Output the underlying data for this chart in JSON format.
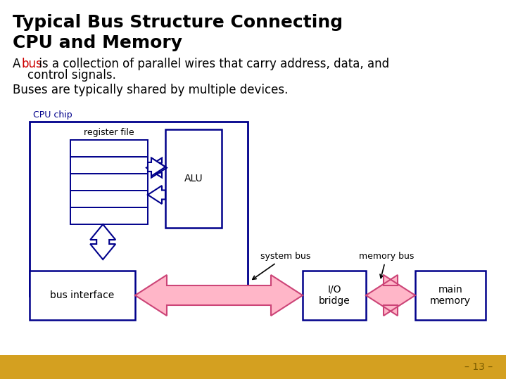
{
  "title_line1": "Typical Bus Structure Connecting",
  "title_line2": "CPU and Memory",
  "title_color": "#000000",
  "title_fontsize": 18,
  "body_text1_prefix": "A ",
  "body_text1_bus": "bus",
  "body_text1_bus_color": "#cc0000",
  "body_text1_rest": " is a collection of parallel wires that carry address, data, and",
  "body_text1_line2": "    control signals.",
  "body_text2": "Buses are typically shared by multiple devices.",
  "body_fontsize": 12,
  "bg_color": "#ffffff",
  "bottom_bar_color": "#d4a020",
  "bottom_text": "– 13 –",
  "bottom_text_color": "#7a5c00",
  "box_color": "#00008b",
  "pink_color": "#ffb6c8",
  "pink_edge": "#cc4477"
}
